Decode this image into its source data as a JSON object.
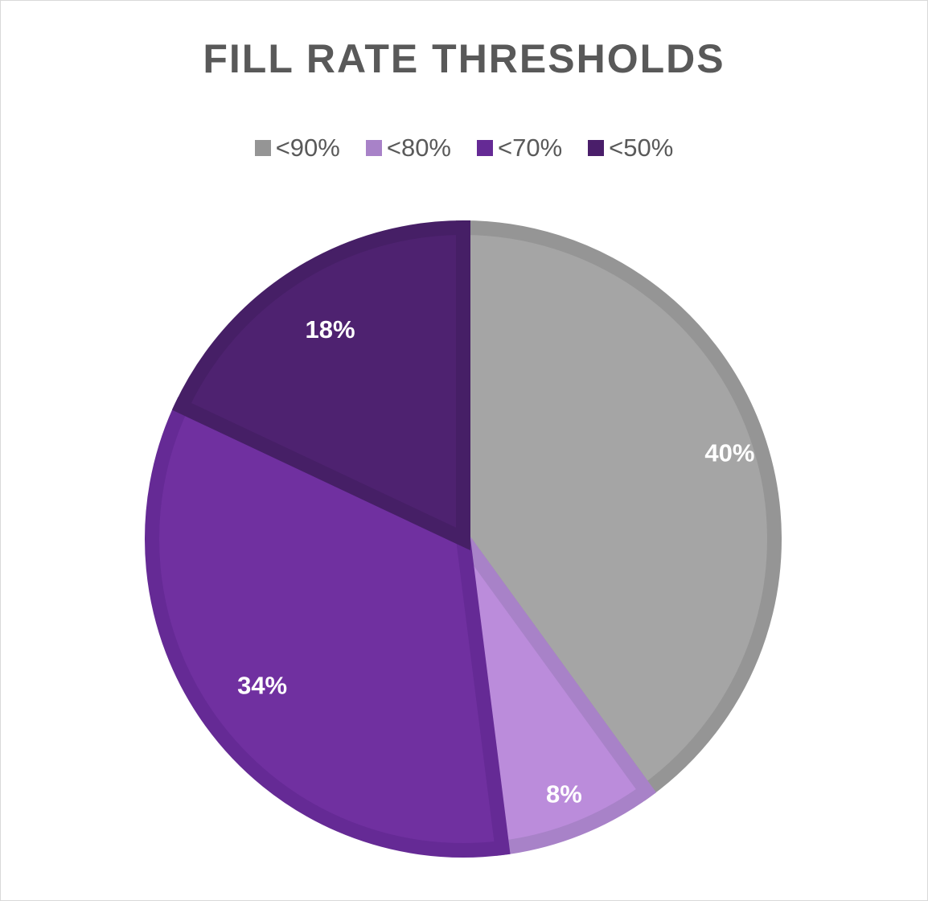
{
  "chart_data": {
    "type": "pie",
    "title": "FILL RATE THRESHOLDS",
    "categories": [
      "<90%",
      "<80%",
      "<70%",
      "<50%"
    ],
    "values": [
      40,
      8,
      34,
      18
    ],
    "data_labels": [
      "40%",
      "8%",
      "34%",
      "18%"
    ],
    "colors": [
      "#a5a5a5",
      "#bb8cdb",
      "#7030a0",
      "#4e2270"
    ],
    "border_colors": [
      "#959595",
      "#a882c8",
      "#652a95",
      "#461f66"
    ],
    "legend_position": "top",
    "start_angle": "12 o'clock, clockwise"
  },
  "title": "FILL RATE THRESHOLDS",
  "legend": [
    {
      "label": "<90%",
      "color": "#959595"
    },
    {
      "label": "<80%",
      "color": "#a882c8"
    },
    {
      "label": "<70%",
      "color": "#652a95"
    },
    {
      "label": "<50%",
      "color": "#4a1e6a"
    }
  ]
}
